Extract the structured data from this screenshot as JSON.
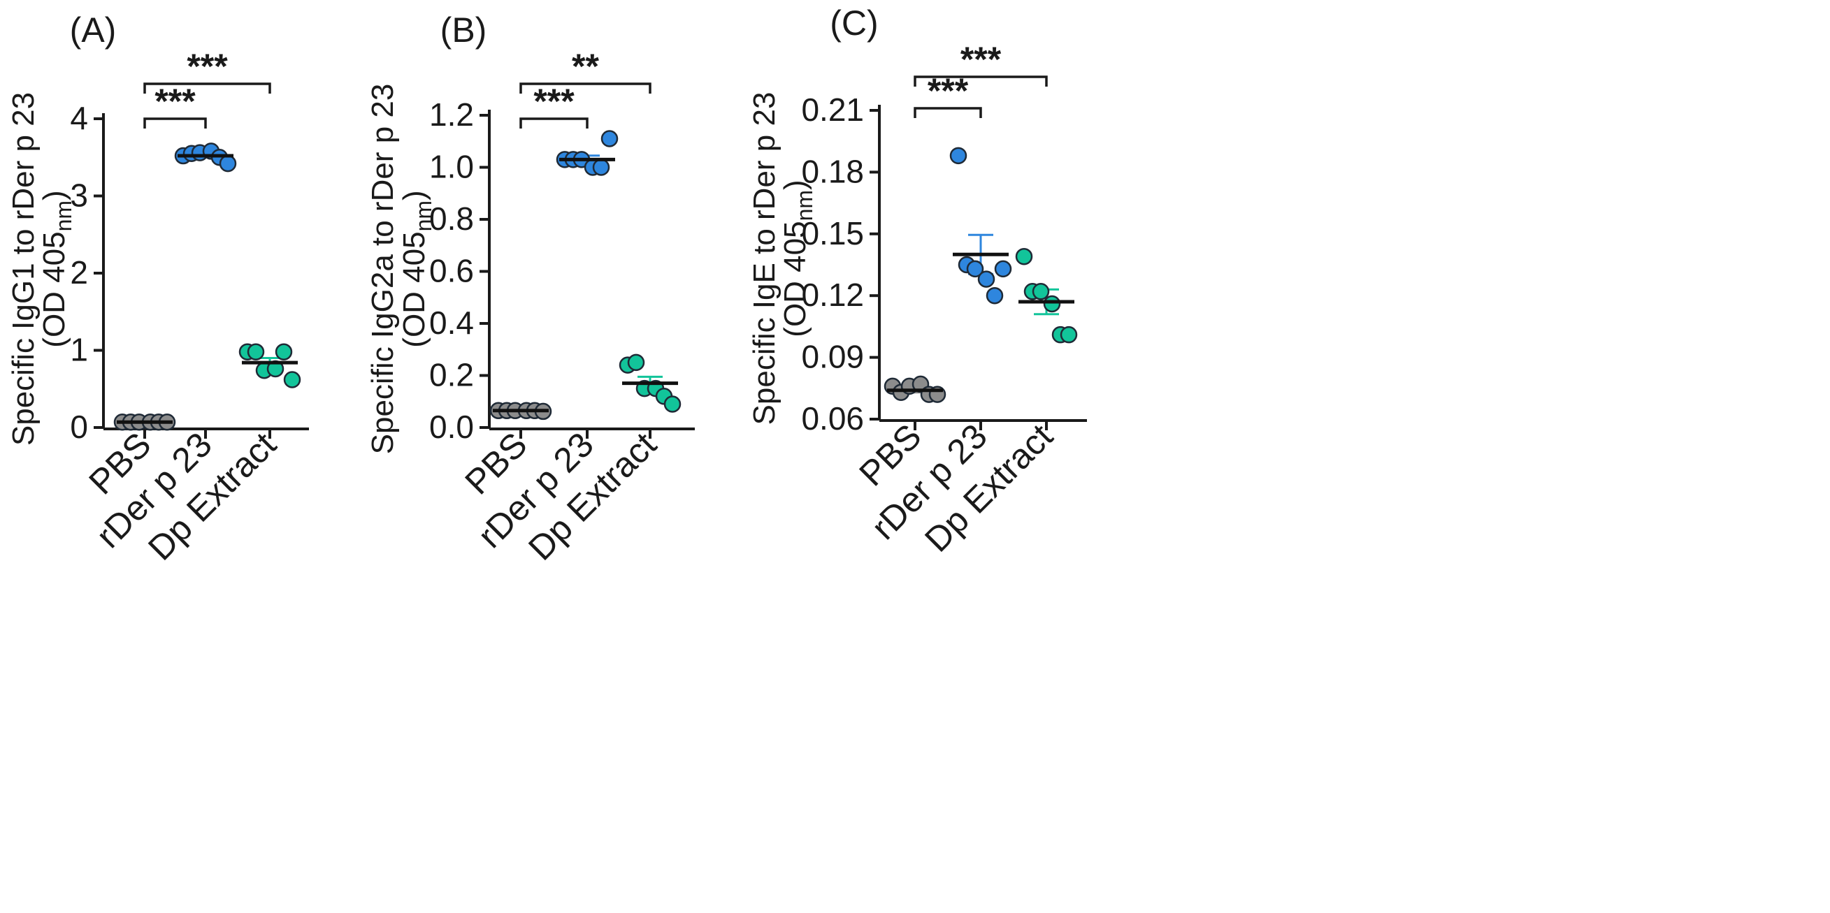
{
  "chart_data": [
    {
      "type": "scatter",
      "panel_label": "(A)",
      "ylabel_main": "Specific IgG1 to rDer p 23",
      "ylabel_unit_pre": "(OD 405",
      "ylabel_unit_sub": "nm",
      "ylabel_unit_post": ")",
      "ylim": [
        0,
        4
      ],
      "yticks": [
        0,
        1,
        2,
        3,
        4
      ],
      "ytick_labels": [
        "0",
        "1",
        "2",
        "3",
        "4"
      ],
      "categories": [
        "PBS",
        "rDer p 23",
        "Dp Extract"
      ],
      "groups": [
        {
          "name": "PBS",
          "color": "#8c8c8c",
          "values": [
            0.07,
            0.07,
            0.07,
            0.07,
            0.07,
            0.07
          ],
          "mean": 0.07,
          "sem": 0.0
        },
        {
          "name": "rDer p 23",
          "color": "#2e86de",
          "values": [
            3.52,
            3.55,
            3.56,
            3.58,
            3.5,
            3.42
          ],
          "mean": 3.52,
          "sem": 0.02
        },
        {
          "name": "Dp Extract",
          "color": "#12c49a",
          "values": [
            0.98,
            0.98,
            0.74,
            0.76,
            0.98,
            0.62
          ],
          "mean": 0.84,
          "sem": 0.06
        }
      ],
      "comparisons": [
        {
          "from": 0,
          "to": 1,
          "label": "***"
        },
        {
          "from": 0,
          "to": 2,
          "label": "***"
        }
      ]
    },
    {
      "type": "scatter",
      "panel_label": "(B)",
      "ylabel_main": "Specific IgG2a to rDer p 23",
      "ylabel_unit_pre": "(OD 405",
      "ylabel_unit_sub": "nm",
      "ylabel_unit_post": ")",
      "ylim": [
        0,
        1.2
      ],
      "yticks": [
        0,
        0.2,
        0.4,
        0.6,
        0.8,
        1.0,
        1.2
      ],
      "ytick_labels": [
        "0.0",
        "0.2",
        "0.4",
        "0.6",
        "0.8",
        "1.0",
        "1.2"
      ],
      "categories": [
        "PBS",
        "rDer p 23",
        "Dp Extract"
      ],
      "groups": [
        {
          "name": "PBS",
          "color": "#8c8c8c",
          "values": [
            0.065,
            0.065,
            0.065,
            0.065,
            0.065,
            0.062
          ],
          "mean": 0.065,
          "sem": 0.002
        },
        {
          "name": "rDer p 23",
          "color": "#2e86de",
          "values": [
            1.03,
            1.03,
            1.03,
            1.0,
            1.0,
            1.11
          ],
          "mean": 1.03,
          "sem": 0.015
        },
        {
          "name": "Dp Extract",
          "color": "#12c49a",
          "values": [
            0.24,
            0.25,
            0.15,
            0.15,
            0.12,
            0.09
          ],
          "mean": 0.17,
          "sem": 0.025
        }
      ],
      "comparisons": [
        {
          "from": 0,
          "to": 1,
          "label": "***"
        },
        {
          "from": 0,
          "to": 2,
          "label": "**"
        }
      ]
    },
    {
      "type": "scatter",
      "panel_label": "(C)",
      "ylabel_main": "Specific IgE to rDer p 23",
      "ylabel_unit_pre": "(OD 405",
      "ylabel_unit_sub": "nm",
      "ylabel_unit_post": ")",
      "ylim": [
        0.06,
        0.21
      ],
      "yticks": [
        0.06,
        0.09,
        0.12,
        0.15,
        0.18,
        0.21
      ],
      "ytick_labels": [
        "0.06",
        "0.09",
        "0.12",
        "0.15",
        "0.18",
        "0.21"
      ],
      "categories": [
        "PBS",
        "rDer p 23",
        "Dp Extract"
      ],
      "groups": [
        {
          "name": "PBS",
          "color": "#8c8c8c",
          "values": [
            0.076,
            0.073,
            0.076,
            0.077,
            0.072,
            0.072
          ],
          "mean": 0.074,
          "sem": 0.001
        },
        {
          "name": "rDer p 23",
          "color": "#2e86de",
          "values": [
            0.188,
            0.135,
            0.133,
            0.128,
            0.12,
            0.133
          ],
          "mean": 0.14,
          "sem": 0.0095
        },
        {
          "name": "Dp Extract",
          "color": "#12c49a",
          "values": [
            0.139,
            0.122,
            0.122,
            0.116,
            0.101,
            0.101
          ],
          "mean": 0.117,
          "sem": 0.006
        }
      ],
      "comparisons": [
        {
          "from": 0,
          "to": 1,
          "label": "***"
        },
        {
          "from": 0,
          "to": 2,
          "label": "***"
        }
      ]
    }
  ]
}
